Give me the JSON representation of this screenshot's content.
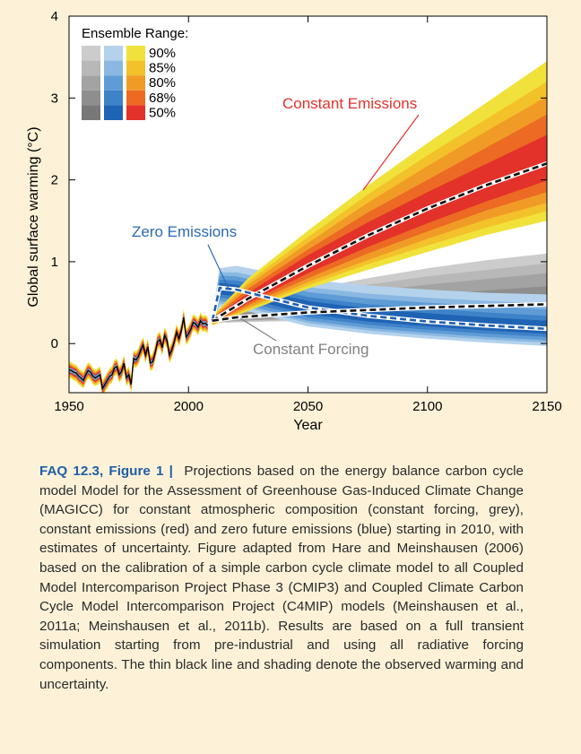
{
  "chart_data": {
    "type": "area",
    "xlabel": "Year",
    "ylabel": "Global surface warming (°C)",
    "xlim": [
      1950,
      2150
    ],
    "ylim": [
      -0.6,
      4
    ],
    "xticks": [
      1950,
      2000,
      2050,
      2100,
      2150
    ],
    "yticks": [
      0,
      1,
      2,
      3,
      4
    ],
    "legend": {
      "title": "Ensemble Range:",
      "levels": [
        "90%",
        "85%",
        "80%",
        "68%",
        "50%"
      ],
      "placement": "top-left",
      "colors": {
        "grey": [
          "#cccccc",
          "#b8b8b8",
          "#a3a3a3",
          "#8e8e8e",
          "#787878"
        ],
        "blue": [
          "#b4d2ec",
          "#8ab8e2",
          "#5f9cd6",
          "#3e82c8",
          "#1f63b4"
        ],
        "red": [
          "#f0e23a",
          "#f3c12a",
          "#f19b27",
          "#ec6a24",
          "#e3322a"
        ]
      }
    },
    "annotations": [
      {
        "text": "Constant Emissions",
        "color": "#e3322a"
      },
      {
        "text": "Zero Emissions",
        "color": "#2a6ab3"
      },
      {
        "text": "Constant Forcing",
        "color": "#808080"
      }
    ],
    "observed": {
      "name": "observed warming",
      "x": [
        1950,
        1951,
        1952,
        1953,
        1954,
        1955,
        1956,
        1957,
        1958,
        1959,
        1960,
        1961,
        1962,
        1963,
        1964,
        1965,
        1966,
        1967,
        1968,
        1969,
        1970,
        1971,
        1972,
        1973,
        1974,
        1975,
        1976,
        1977,
        1978,
        1979,
        1980,
        1981,
        1982,
        1983,
        1984,
        1985,
        1986,
        1987,
        1988,
        1989,
        1990,
        1991,
        1992,
        1993,
        1994,
        1995,
        1996,
        1997,
        1998,
        1999,
        2000,
        2001,
        2002,
        2003,
        2004,
        2005,
        2006,
        2007,
        2008
      ],
      "y": [
        -0.32,
        -0.33,
        -0.35,
        -0.36,
        -0.4,
        -0.42,
        -0.45,
        -0.38,
        -0.33,
        -0.35,
        -0.4,
        -0.42,
        -0.4,
        -0.38,
        -0.55,
        -0.5,
        -0.45,
        -0.4,
        -0.38,
        -0.3,
        -0.28,
        -0.38,
        -0.34,
        -0.24,
        -0.42,
        -0.38,
        -0.5,
        -0.18,
        -0.2,
        -0.16,
        -0.08,
        -0.02,
        -0.14,
        -0.04,
        -0.24,
        -0.22,
        -0.12,
        0.02,
        0.05,
        -0.05,
        0.1,
        0.04,
        -0.14,
        -0.08,
        0.02,
        0.14,
        0.06,
        0.16,
        0.32,
        0.08,
        0.12,
        0.18,
        0.26,
        0.24,
        0.2,
        0.28,
        0.24,
        0.25,
        0.22
      ]
    },
    "series": [
      {
        "name": "Constant Emissions",
        "color": "#e3322a",
        "x": [
          2010,
          2025,
          2050,
          2075,
          2100,
          2125,
          2150
        ],
        "median": [
          0.28,
          0.55,
          0.95,
          1.32,
          1.65,
          1.94,
          2.2
        ],
        "bands": {
          "50%": {
            "lower": [
              0.26,
              0.5,
              0.86,
              1.18,
              1.47,
              1.74,
              1.99
            ],
            "upper": [
              0.3,
              0.62,
              1.08,
              1.48,
              1.85,
              2.2,
              2.55
            ]
          },
          "68%": {
            "lower": [
              0.25,
              0.47,
              0.8,
              1.1,
              1.37,
              1.63,
              1.85
            ],
            "upper": [
              0.31,
              0.67,
              1.15,
              1.6,
              2.0,
              2.4,
              2.8
            ]
          },
          "80%": {
            "lower": [
              0.24,
              0.44,
              0.75,
              1.02,
              1.28,
              1.52,
              1.72
            ],
            "upper": [
              0.32,
              0.72,
              1.23,
              1.72,
              2.17,
              2.6,
              3.02
            ]
          },
          "85%": {
            "lower": [
              0.23,
              0.42,
              0.71,
              0.97,
              1.2,
              1.42,
              1.62
            ],
            "upper": [
              0.33,
              0.76,
              1.3,
              1.82,
              2.3,
              2.75,
              3.2
            ]
          },
          "90%": {
            "lower": [
              0.22,
              0.4,
              0.67,
              0.9,
              1.12,
              1.33,
              1.5
            ],
            "upper": [
              0.34,
              0.8,
              1.38,
              1.93,
              2.45,
              2.95,
              3.45
            ]
          }
        }
      },
      {
        "name": "Zero Emissions",
        "color": "#1f63b4",
        "x": [
          2010,
          2013,
          2020,
          2050,
          2075,
          2100,
          2125,
          2150
        ],
        "median": [
          0.28,
          0.68,
          0.66,
          0.44,
          0.34,
          0.27,
          0.22,
          0.18
        ],
        "bands": {
          "50%": {
            "lower": [
              0.27,
              0.6,
              0.58,
              0.36,
              0.27,
              0.21,
              0.16,
              0.12
            ],
            "upper": [
              0.3,
              0.74,
              0.72,
              0.52,
              0.43,
              0.37,
              0.32,
              0.28
            ]
          },
          "68%": {
            "lower": [
              0.26,
              0.56,
              0.54,
              0.32,
              0.23,
              0.17,
              0.12,
              0.08
            ],
            "upper": [
              0.31,
              0.78,
              0.77,
              0.57,
              0.48,
              0.43,
              0.38,
              0.34
            ]
          },
          "80%": {
            "lower": [
              0.25,
              0.52,
              0.5,
              0.28,
              0.19,
              0.13,
              0.08,
              0.04
            ],
            "upper": [
              0.32,
              0.83,
              0.82,
              0.63,
              0.55,
              0.5,
              0.46,
              0.42
            ]
          },
          "85%": {
            "lower": [
              0.24,
              0.49,
              0.47,
              0.25,
              0.16,
              0.1,
              0.05,
              0.01
            ],
            "upper": [
              0.33,
              0.87,
              0.87,
              0.69,
              0.61,
              0.56,
              0.52,
              0.49
            ]
          },
          "90%": {
            "lower": [
              0.23,
              0.45,
              0.43,
              0.21,
              0.12,
              0.06,
              0.01,
              -0.03
            ],
            "upper": [
              0.34,
              0.92,
              0.95,
              0.78,
              0.71,
              0.66,
              0.62,
              0.6
            ]
          }
        }
      },
      {
        "name": "Constant Forcing",
        "color": "#787878",
        "x": [
          2010,
          2020,
          2050,
          2075,
          2100,
          2125,
          2150
        ],
        "median": [
          0.28,
          0.32,
          0.38,
          0.41,
          0.44,
          0.46,
          0.48
        ],
        "bands": {
          "50%": {
            "lower": [
              0.27,
              0.3,
              0.35,
              0.37,
              0.4,
              0.42,
              0.43
            ],
            "upper": [
              0.29,
              0.34,
              0.42,
              0.47,
              0.52,
              0.56,
              0.6
            ]
          },
          "68%": {
            "lower": [
              0.27,
              0.29,
              0.33,
              0.35,
              0.37,
              0.39,
              0.4
            ],
            "upper": [
              0.3,
              0.36,
              0.47,
              0.54,
              0.6,
              0.65,
              0.7
            ]
          },
          "80%": {
            "lower": [
              0.26,
              0.28,
              0.31,
              0.33,
              0.34,
              0.36,
              0.37
            ],
            "upper": [
              0.31,
              0.39,
              0.54,
              0.64,
              0.72,
              0.79,
              0.86
            ]
          },
          "85%": {
            "lower": [
              0.26,
              0.27,
              0.3,
              0.31,
              0.32,
              0.33,
              0.34
            ],
            "upper": [
              0.32,
              0.42,
              0.6,
              0.72,
              0.82,
              0.9,
              0.98
            ]
          },
          "90%": {
            "lower": [
              0.25,
              0.26,
              0.28,
              0.29,
              0.3,
              0.31,
              0.32
            ],
            "upper": [
              0.33,
              0.45,
              0.66,
              0.8,
              0.92,
              1.02,
              1.1
            ]
          }
        }
      }
    ]
  },
  "caption": {
    "label": "FAQ 12.3, Figure 1 |",
    "text": "Projections based on the energy balance carbon cycle model Model for the Assessment of Greenhouse Gas-Induced Climate Change (MAGICC) for constant atmospheric composition (constant forcing, grey), constant emissions (red) and zero future emissions (blue) starting in 2010, with estimates of uncertainty. Figure adapted from Hare and Meinshausen (2006) based on the calibration of a simple carbon cycle climate model to all Coupled Model Intercomparison Project Phase 3 (CMIP3) and Coupled Climate Carbon Cycle Model Intercomparison Project (C4MIP) models (Meinshausen et al., 2011a; Meinshausen et al., 2011b). Results are based on a full transient simulation starting from pre-industrial and using all radiative forcing components. The thin black line and shading denote the observed warming and uncertainty."
  }
}
